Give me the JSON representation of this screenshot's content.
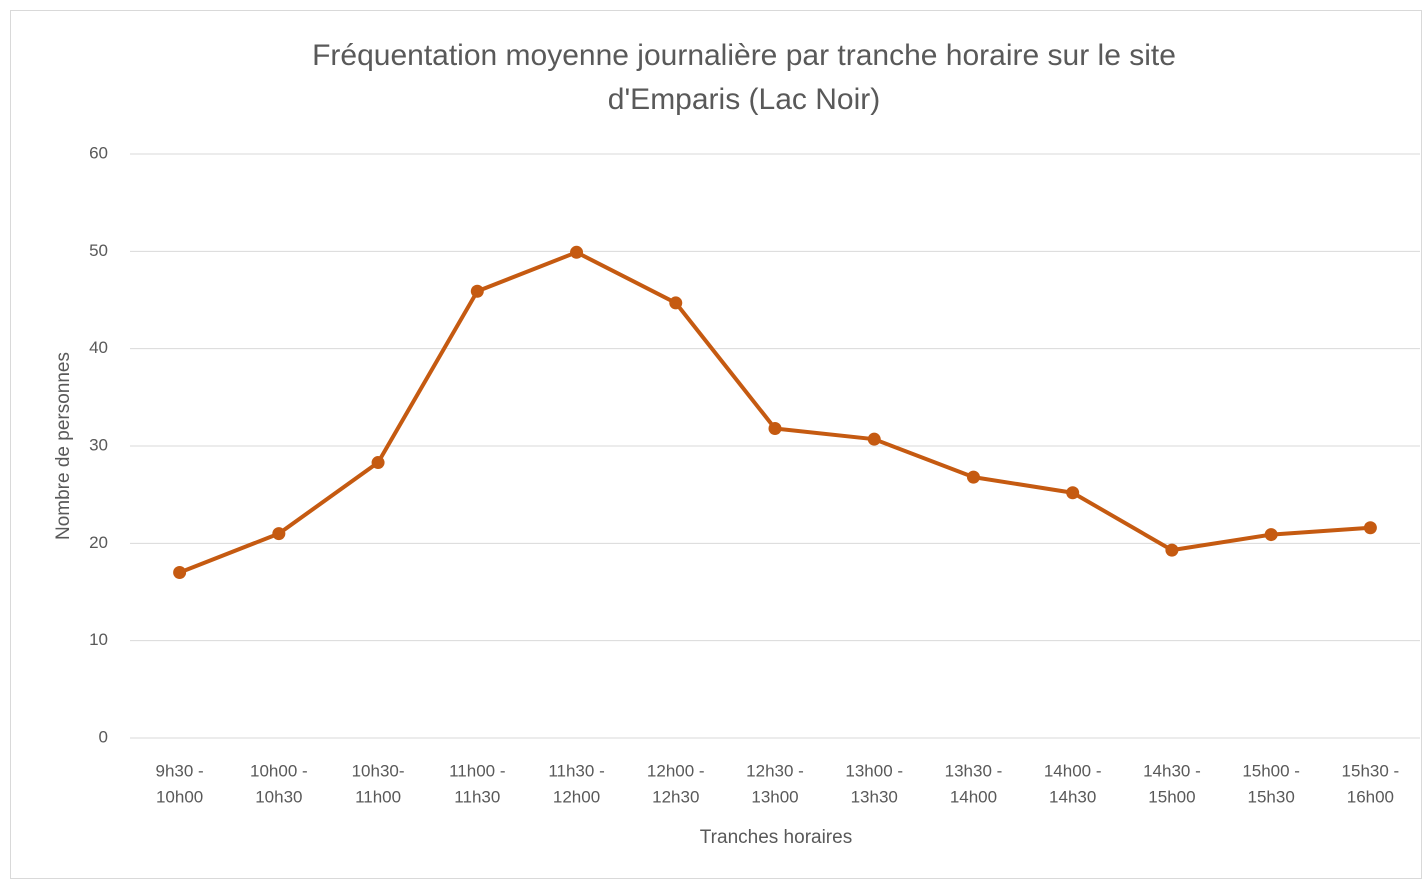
{
  "chart_data": {
    "type": "line",
    "title": [
      "Fréquentation moyenne journalière par tranche horaire sur le site",
      "d'Emparis (Lac Noir)"
    ],
    "x_label": "Tranches horaires",
    "y_label": "Nombre de personnes",
    "categories": [
      [
        "9h30 -",
        "10h00"
      ],
      [
        "10h00 -",
        "10h30"
      ],
      [
        "10h30-",
        "11h00"
      ],
      [
        "11h00 -",
        "11h30"
      ],
      [
        "11h30 -",
        "12h00"
      ],
      [
        "12h00 -",
        "12h30"
      ],
      [
        "12h30 -",
        "13h00"
      ],
      [
        "13h00 -",
        "13h30"
      ],
      [
        "13h30 -",
        "14h00"
      ],
      [
        "14h00 -",
        "14h30"
      ],
      [
        "14h30 -",
        "15h00"
      ],
      [
        "15h00 -",
        "15h30"
      ],
      [
        "15h30 -",
        "16h00"
      ]
    ],
    "values": [
      17,
      21,
      28.3,
      45.9,
      49.9,
      44.7,
      31.8,
      30.7,
      26.8,
      25.2,
      19.3,
      20.9,
      21.6
    ],
    "color": "#c55a11",
    "ylim": [
      0,
      60
    ],
    "yticks": [
      0,
      10,
      20,
      30,
      40,
      50,
      60
    ],
    "grid": true
  }
}
